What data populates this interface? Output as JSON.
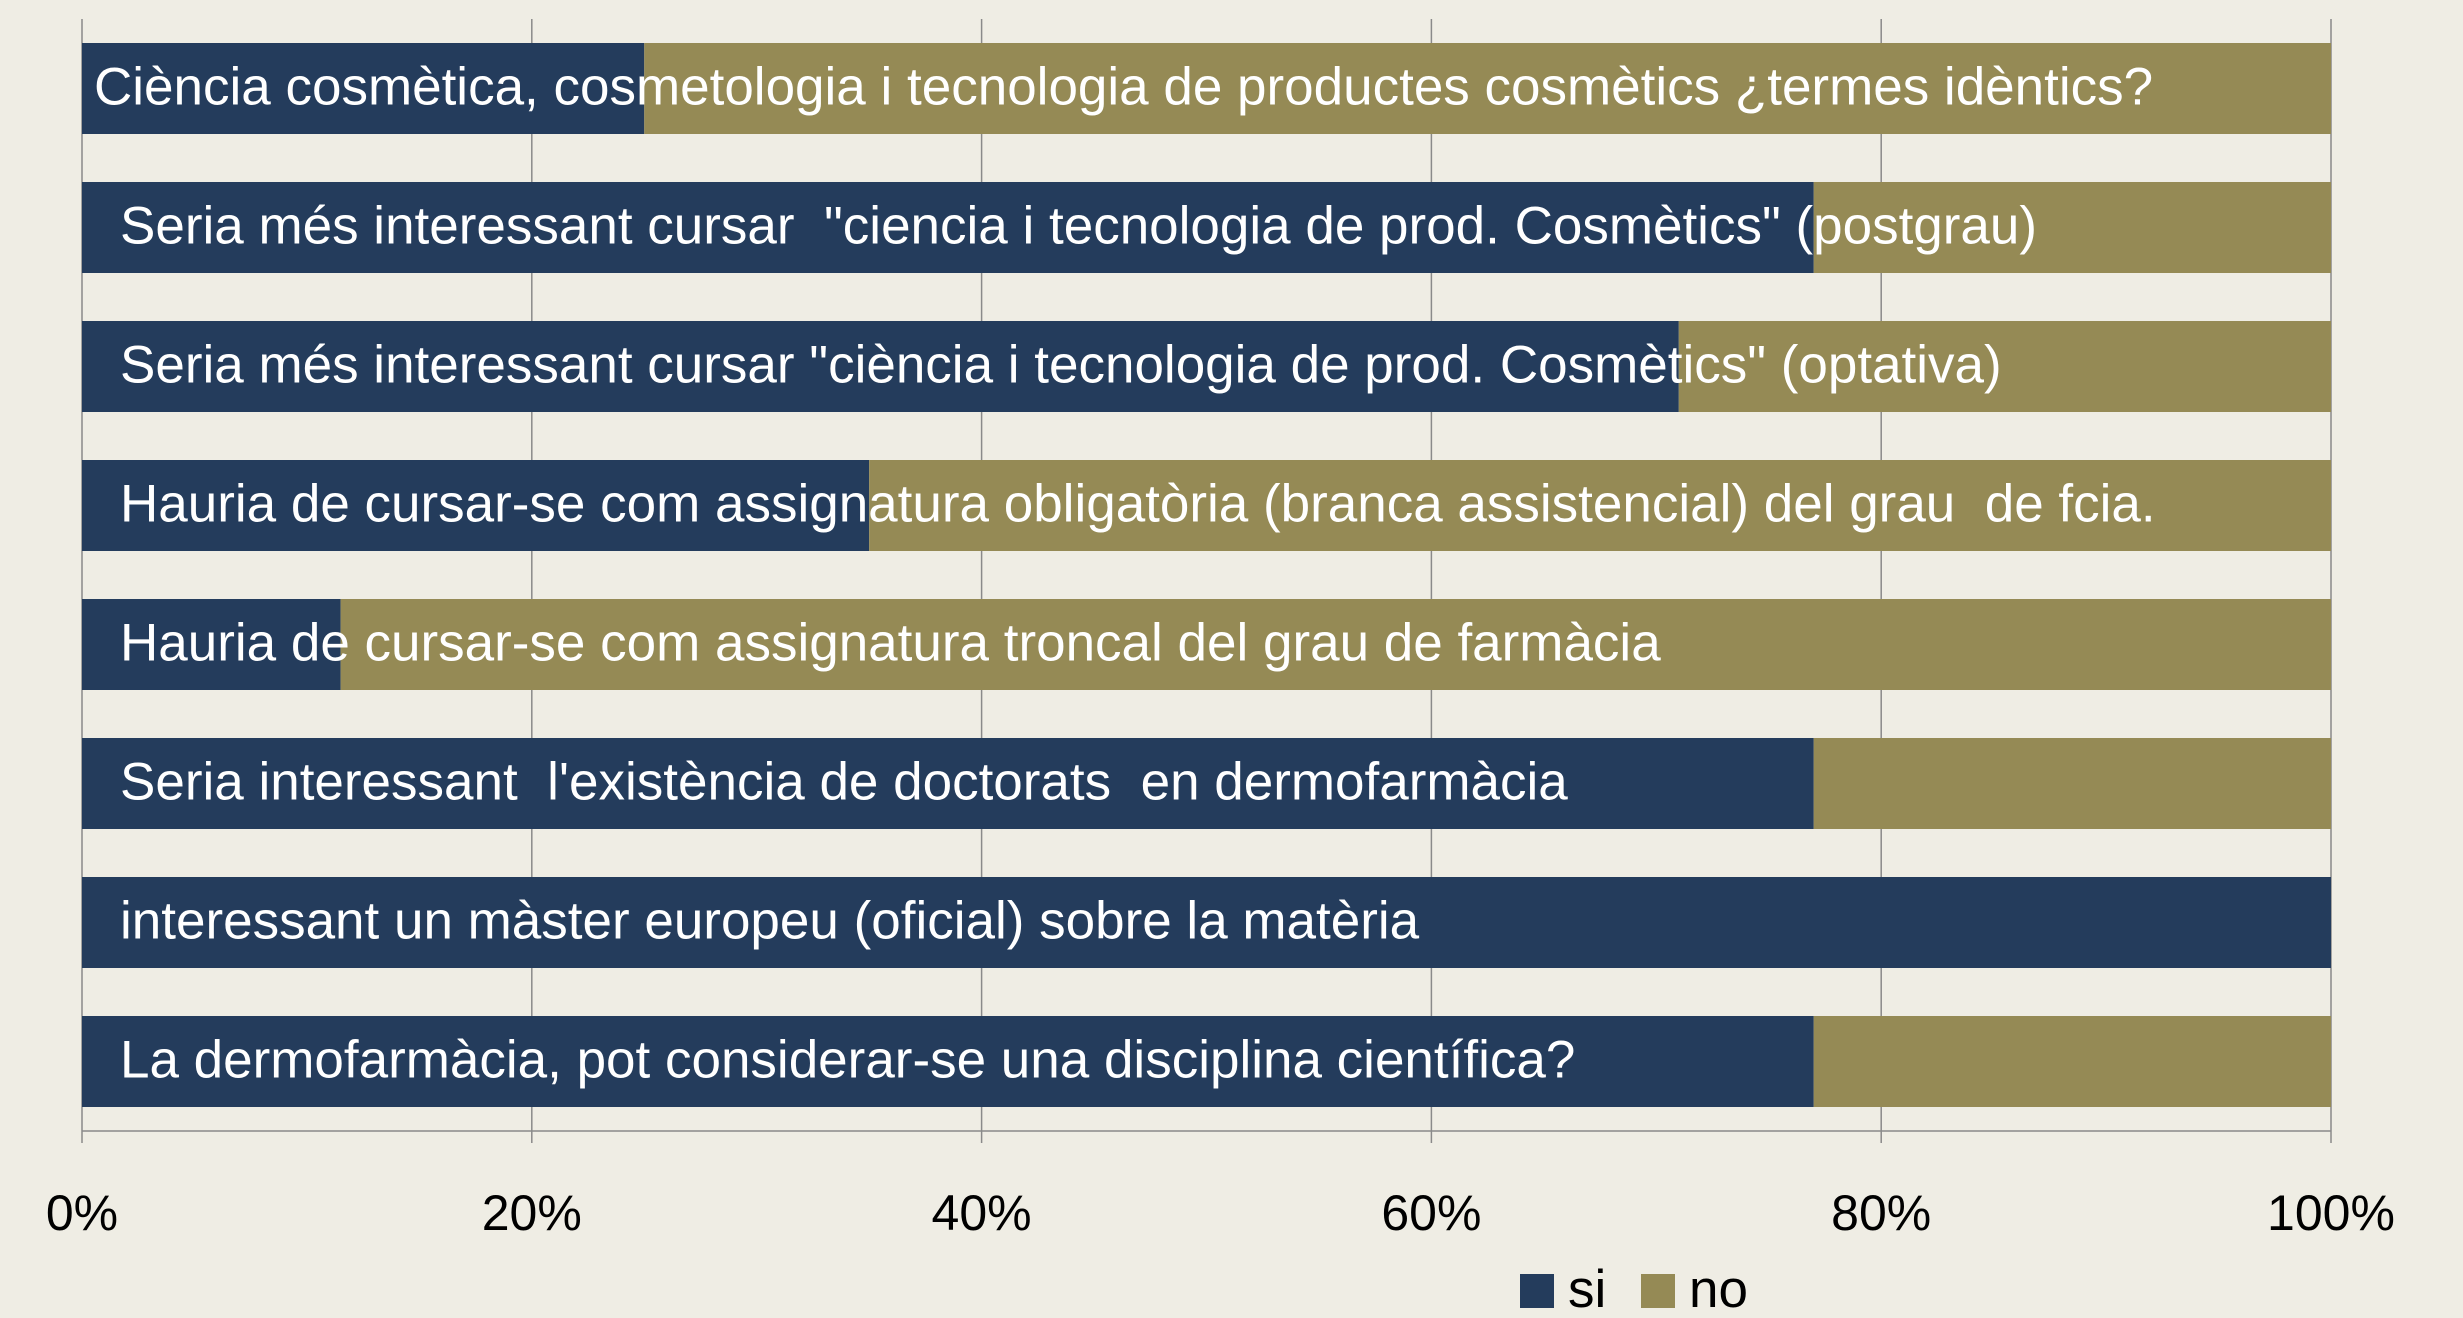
{
  "chart_data": {
    "type": "stacked_barh",
    "categories": [
      "Ciència cosmètica, cosmetologia i tecnologia de productes cosmètics ¿termes idèntics?",
      "Seria més interessant cursar  \"ciencia i tecnologia de prod. Cosmètics\" (postgrau)",
      "Seria més interessant cursar \"ciència i tecnologia de prod. Cosmètics\" (optativa)",
      "Hauria de cursar-se com assignatura obligatòria (branca assistencial) del grau  de fcia.",
      "Hauria de cursar-se com assignatura troncal del grau de farmàcia",
      "Seria interessant  l'existència de doctorats  en dermofarmàcia",
      "interessant un màster europeu (oficial) sobre la matèria",
      "La dermofarmàcia, pot considerar-se una disciplina científica?"
    ],
    "series": [
      {
        "name": "si",
        "color": "#243c5c",
        "values": [
          25,
          77,
          71,
          35,
          11.5,
          77,
          100,
          77
        ]
      },
      {
        "name": "no",
        "color": "#958a55",
        "values": [
          75,
          23,
          29,
          65,
          88.5,
          23,
          0,
          23
        ]
      }
    ],
    "xlim": [
      0,
      100
    ],
    "xticks": [
      {
        "value": 0,
        "label": "0%"
      },
      {
        "value": 20,
        "label": "20%"
      },
      {
        "value": 40,
        "label": "40%"
      },
      {
        "value": 60,
        "label": "60%"
      },
      {
        "value": 80,
        "label": "80%"
      },
      {
        "value": 100,
        "label": "100%"
      }
    ],
    "grid": true,
    "legend": "bottom"
  }
}
